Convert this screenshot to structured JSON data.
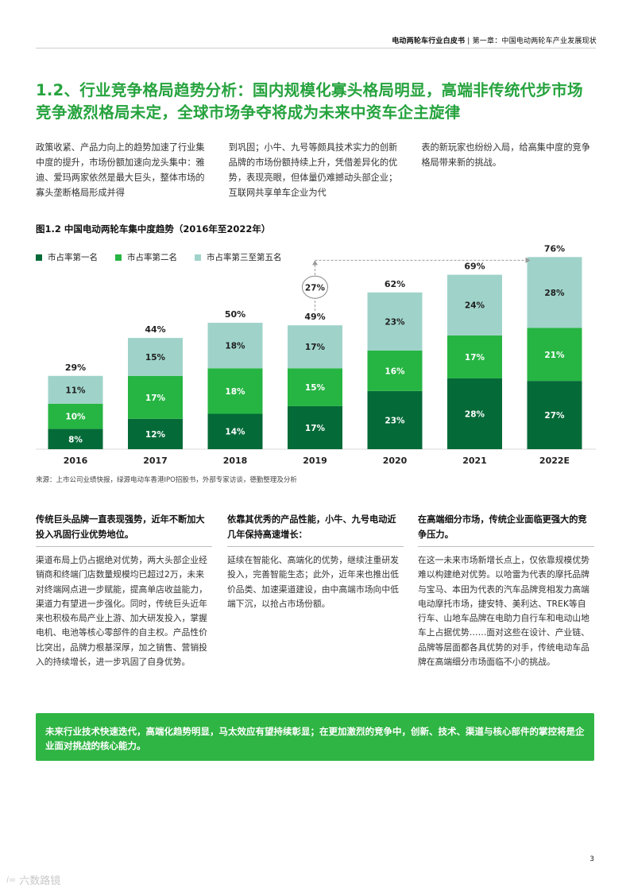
{
  "header": {
    "doc_title": "电动两轮车行业白皮书",
    "separator": "|",
    "chapter": "第一章：中国电动两轮车产业发展现状"
  },
  "section_title": "1.2、行业竞争格局趋势分析：国内规模化寡头格局明显，高端非传统代步市场竞争激烈格局未定，全球市场争夺将成为未来中资车企主旋律",
  "intro": [
    "政策收紧、产品力向上的趋势加速了行业集中度的提升，市场份额加速向龙头集中：雅迪、爱玛两家依然是最大巨头，整体市场的寡头垄断格局形成并得",
    "到巩固；小牛、九号等颇具技术实力的创新品牌的市场份额持续上升，凭借差异化的优势，表现亮眼，但体量仍难撼动头部企业；互联网共享单车企业为代",
    "表的新玩家也纷纷入局，给高集中度的竞争格局带来新的挑战。"
  ],
  "chart_data": {
    "type": "bar",
    "stacked": true,
    "title": "图1.2 中国电动两轮车集中度趋势（2016年至2022年）",
    "categories": [
      "2016",
      "2017",
      "2018",
      "2019",
      "2020",
      "2021",
      "2022E"
    ],
    "series": [
      {
        "name": "市占率第一名",
        "values": [
          8,
          12,
          14,
          17,
          23,
          28,
          27
        ],
        "color": "#046a38"
      },
      {
        "name": "市占率第二名",
        "values": [
          10,
          17,
          18,
          15,
          16,
          17,
          21
        ],
        "color": "#26b543"
      },
      {
        "name": "市占率第三至第五名",
        "values": [
          11,
          15,
          18,
          17,
          23,
          24,
          28
        ],
        "color": "#9fd3ca"
      }
    ],
    "totals": [
      29,
      44,
      50,
      49,
      62,
      69,
      76
    ],
    "annotation": {
      "text": "27%",
      "from": "2019",
      "to": "2022E"
    },
    "value_suffix": "%",
    "ylim": [
      0,
      80
    ],
    "grid": false,
    "legend_position": "top-left"
  },
  "source": "来源：上市公司业绩快报，绿源电动车香港IPO招股书，外部专家访谈，德勤整理及分析",
  "columns": [
    {
      "heading": "传统巨头品牌一直表现强势，近年不断加大投入巩固行业优势地位。",
      "body": "渠道布局上仍占据绝对优势，两大头部企业经销商和终端门店数量规模均已超过2万，未来对终端网点进一步赋能，提高单店收益能力，渠道力有望进一步强化。同时，传统巨头近年来也积极布局产业上游、加大研发投入，掌握电机、电池等核心零部件的自主权。产品性价比突出，品牌力根基深厚，加之销售、营销投入的持续增长，进一步巩固了自身优势。"
    },
    {
      "heading": "依靠其优秀的产品性能，小牛、九号电动近几年保持高速增长：",
      "body": "延续在智能化、高端化的优势，继续注重研发投入，完善智能生态；此外，近年来也推出低价品类、加速渠道建设，由中高端市场向中低端下沉，以抢占市场份额。"
    },
    {
      "heading": "在高端细分市场，传统企业面临更强大的竞争压力。",
      "body": "在这一未来市场新增长点上，仅依靠规模优势难以构建绝对优势。以哈雷为代表的摩托品牌与宝马、本田为代表的汽车品牌竞相发力高端电动摩托市场，捷安特、美利达、TREK等自行车、山地车品牌在电助力自行车和电动山地车上占据优势……面对这些在设计、产业链、品牌等层面都各具优势的对手，传统电动车品牌在高端细分市场面临不小的挑战。"
    }
  ],
  "callout": "未来行业技术快速迭代，高端化趋势明显，马太效应有望持续彰显；在更加激烈的竞争中，创新、技术、渠道与核心部件的掌控将是企业面对挑战的核心能力。",
  "page_number": "3",
  "watermark": "六数路镜"
}
